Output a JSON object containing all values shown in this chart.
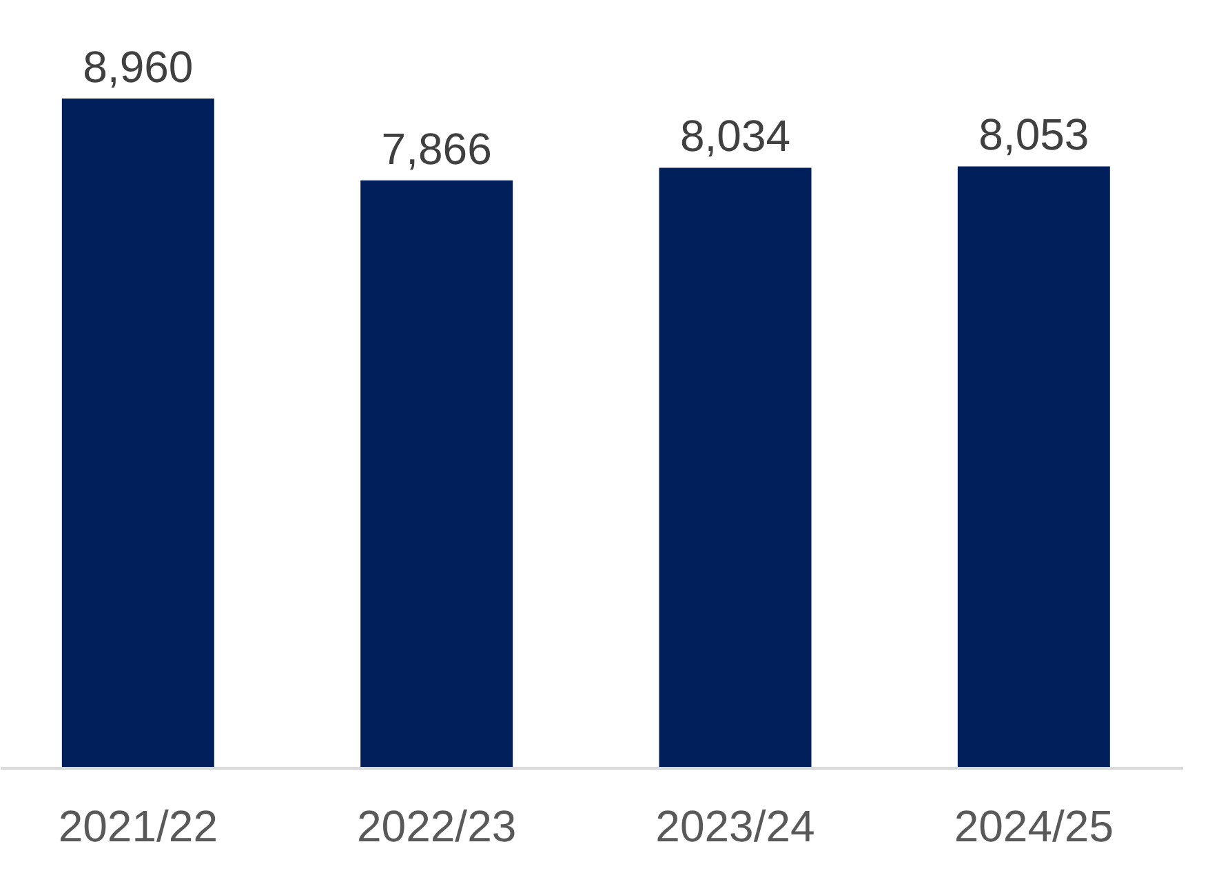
{
  "chart_data": {
    "type": "bar",
    "categories": [
      "2021/22",
      "2022/23",
      "2023/24",
      "2024/25"
    ],
    "values": [
      8960,
      7866,
      8034,
      8053
    ],
    "value_labels": [
      "8,960",
      "7,866",
      "8,034",
      "8,053"
    ],
    "color": "#001f5b",
    "grid": false
  }
}
